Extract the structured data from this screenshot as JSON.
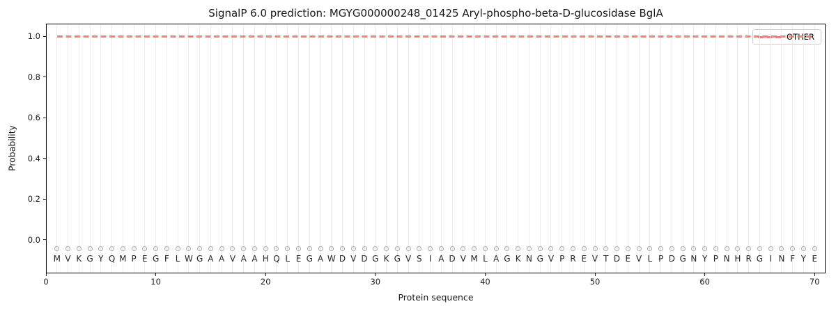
{
  "figure_title": "SignalP 6.0 prediction: MGYG000000248_01425 Aryl-phospho-beta-D-glucosidase BglA",
  "chart_data": {
    "type": "line",
    "title": "SignalP 6.0 prediction: MGYG000000248_01425 Aryl-phospho-beta-D-glucosidase BglA",
    "xlabel": "Protein sequence",
    "ylabel": "Probability",
    "xlim": [
      0,
      71
    ],
    "ylim": [
      -0.166,
      1.062
    ],
    "x_ticks": [
      0,
      10,
      20,
      30,
      40,
      50,
      60,
      70
    ],
    "y_ticks": [
      "0.0",
      "0.2",
      "0.4",
      "0.6",
      "0.8",
      "1.0"
    ],
    "grid": "light vertical gridline at every residue position, no horizontal gridlines",
    "legend": {
      "position": "upper-right",
      "entries": [
        {
          "label": "OTHER",
          "color": "#f08080",
          "linestyle": "dashed"
        }
      ]
    },
    "series": [
      {
        "name": "OTHER",
        "color": "#f08080",
        "linestyle": "dashed",
        "x_start": 1,
        "x_end": 70,
        "constant_y": 1.0
      }
    ],
    "sequence": "MVKGYQMPEGFLWGAAVAAHQLEGAWDVDGKGVSIADVMLAGKNGVPREVTDEVLPDGNYPNHRGINFYE",
    "residue_markers": {
      "shape": "open-circle",
      "y": -0.046,
      "color": "#a9a9a9",
      "count": 70
    },
    "colors": {
      "axis": "#000000",
      "text": "#1a1a1a",
      "gridline": "#ececec",
      "marker_edge": "#a9a9a9",
      "other_line": "#f08080"
    }
  }
}
